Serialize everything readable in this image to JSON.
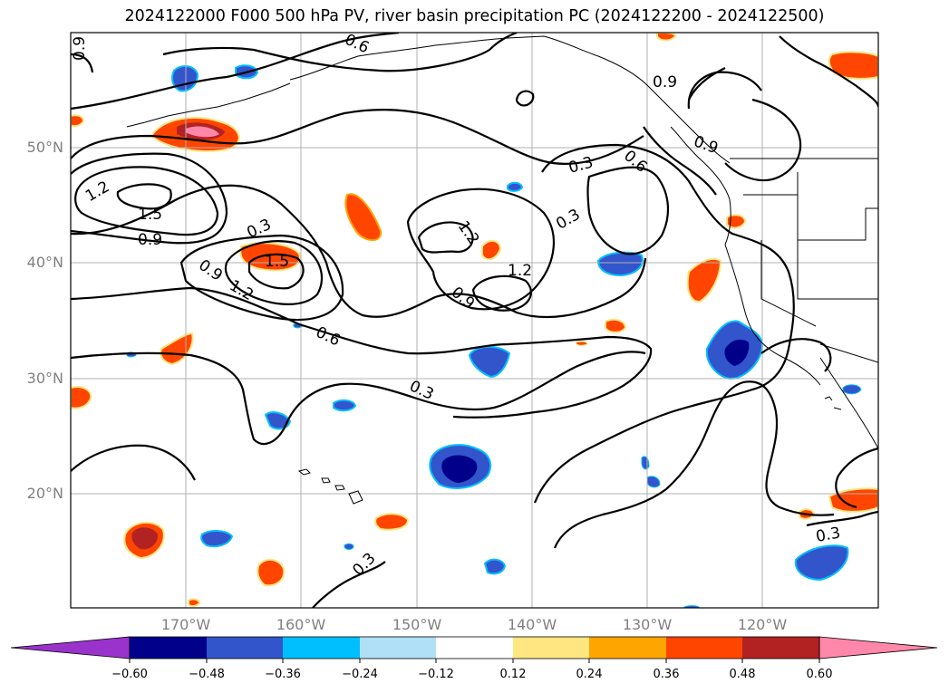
{
  "title": "2024122000 F000 500 hPa PV, river basin precipitation PC (2024122200 - 2024122500)",
  "lat_labels": [
    "50°N",
    "40°N",
    "30°N",
    "20°N"
  ],
  "lon_labels": [
    "170°W",
    "160°W",
    "150°W",
    "140°W",
    "130°W",
    "120°W"
  ],
  "colorbar": {
    "ticks": [
      "−0.60",
      "−0.48",
      "−0.36",
      "−0.24",
      "−0.12",
      "0.12",
      "0.24",
      "0.36",
      "0.48",
      "0.60"
    ],
    "colors": [
      "#9933cc",
      "#00008b",
      "#3355cc",
      "#00bfff",
      "#b0e0f8",
      "#ffffff",
      "#ffe680",
      "#ffa500",
      "#ff4500",
      "#b22222",
      "#ff88aa"
    ],
    "extend": "both"
  },
  "contour_labels": [
    "0.9",
    "0.6",
    "0.9",
    "0.9",
    "0.3",
    "0.6",
    "1.2",
    "1.5",
    "0.9",
    "0.3",
    "1.5",
    "0.9",
    "1.2",
    "1.2",
    "1.2",
    "0.9",
    "0.3",
    "0.6",
    "0.3",
    "0.3",
    "0.3"
  ],
  "fill_colors": {
    "orange": "#ff4500",
    "orange_edge": "#ffa500",
    "yellow": "#ffe680",
    "red": "#b22222",
    "pink": "#ff88aa",
    "blue": "#3355cc",
    "navy": "#00008b",
    "light_blue": "#00bfff"
  }
}
